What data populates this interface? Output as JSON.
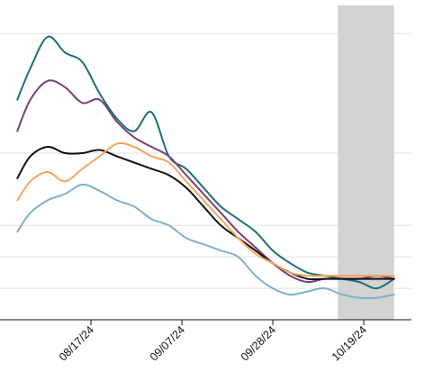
{
  "chart_data": {
    "type": "line",
    "title": "",
    "xlabel": "",
    "ylabel": "",
    "x_tick_labels": [
      "08/17/24",
      "09/07/24",
      "09/28/24",
      "10/19/24"
    ],
    "x_tick_dates": [
      "2024-08-17",
      "2024-09-07",
      "2024-09-28",
      "2024-10-19"
    ],
    "x": [
      "2024-07-31",
      "2024-08-03",
      "2024-08-07",
      "2024-08-11",
      "2024-08-15",
      "2024-08-19",
      "2024-08-23",
      "2024-08-27",
      "2024-08-31",
      "2024-09-04",
      "2024-09-08",
      "2024-09-12",
      "2024-09-16",
      "2024-09-20",
      "2024-09-24",
      "2024-09-28",
      "2024-10-02",
      "2024-10-06",
      "2024-10-10",
      "2024-10-14",
      "2024-10-18",
      "2024-10-22",
      "2024-10-26"
    ],
    "xlim": [
      "2024-07-27",
      "2024-10-30"
    ],
    "ylim": [
      0,
      100
    ],
    "y_gridlines": [
      10,
      20,
      30,
      53,
      91
    ],
    "grid": "horizontal",
    "highlight_range": [
      "2024-10-13",
      "2024-10-26"
    ],
    "colors": {
      "teal": "#1b6f77",
      "purple": "#7b3f78",
      "black": "#111111",
      "orange": "#f4a55e",
      "light_blue": "#7fb0c6",
      "highlight": "#d3d3d3",
      "grid": "#e0e0e0"
    },
    "series": [
      {
        "color": "teal",
        "values": [
          70,
          80,
          90,
          85,
          82,
          72,
          64,
          60,
          66,
          52,
          48,
          42,
          36,
          32,
          28,
          22,
          18,
          15,
          14,
          13,
          12,
          10,
          13
        ]
      },
      {
        "color": "purple",
        "values": [
          60,
          70,
          76,
          74,
          69,
          70,
          63,
          58,
          55,
          52,
          46,
          40,
          34,
          28,
          23,
          18,
          14,
          12,
          13,
          13,
          13,
          14,
          13
        ]
      },
      {
        "color": "black",
        "values": [
          45,
          52,
          55,
          53,
          53,
          54,
          52,
          50,
          48,
          46,
          42,
          36,
          30,
          26,
          22,
          18,
          15,
          13,
          13,
          13,
          13,
          13,
          13
        ]
      },
      {
        "color": "orange",
        "values": [
          38,
          44,
          47,
          44,
          48,
          52,
          56,
          55,
          52,
          50,
          44,
          38,
          32,
          26,
          21,
          18,
          15,
          14,
          14,
          14,
          14,
          14,
          14
        ]
      },
      {
        "color": "light_blue",
        "values": [
          28,
          34,
          38,
          40,
          43,
          41,
          38,
          36,
          32,
          30,
          26,
          24,
          22,
          20,
          14,
          10,
          8,
          9,
          10,
          8,
          7,
          7,
          8
        ]
      }
    ]
  }
}
